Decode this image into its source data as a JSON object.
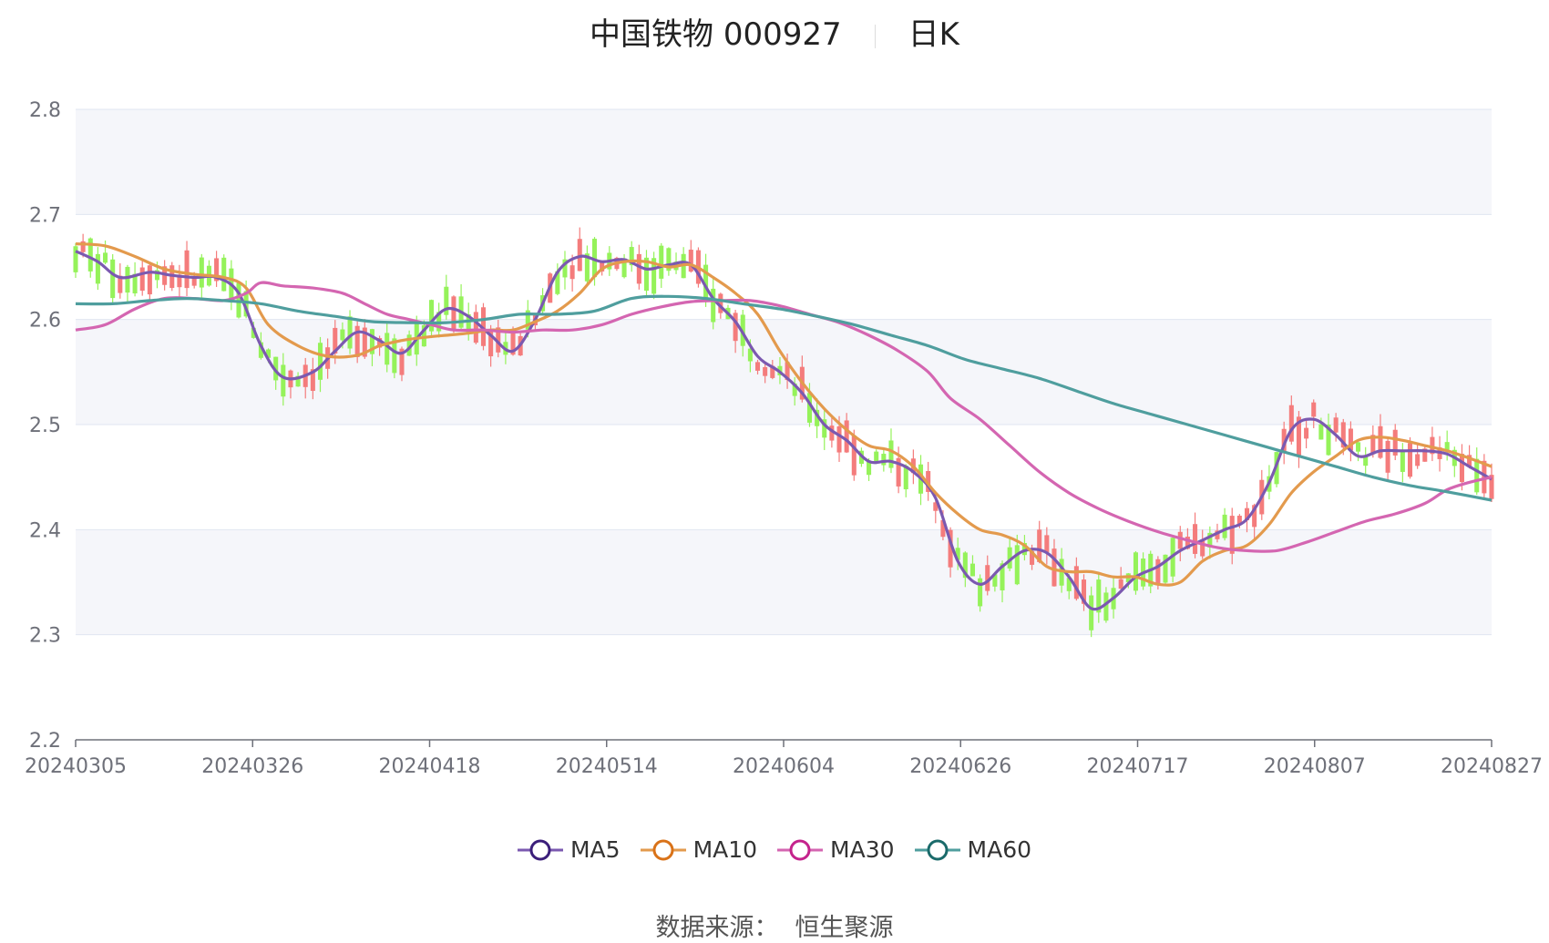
{
  "title": {
    "name": "中国铁物 000927",
    "period": "日K"
  },
  "source": {
    "label": "数据来源：",
    "value": "恒生聚源"
  },
  "chart_data": {
    "type": "candlestick",
    "yaxis": {
      "min": 2.2,
      "max": 2.8,
      "ticks": [
        "2.8",
        "2.7",
        "2.6",
        "2.5",
        "2.4",
        "2.3",
        "2.2"
      ]
    },
    "xaxis": {
      "tick_labels": [
        "20240305",
        "20240326",
        "20240418",
        "20240514",
        "20240604",
        "20240626",
        "20240717",
        "20240807",
        "20240827"
      ]
    },
    "colors": {
      "up": "#f47c7c",
      "down": "#95f25a",
      "grid": "#e0e6f1",
      "band": "#f5f6fa"
    },
    "series": [
      {
        "name": "MA5",
        "color": "#7b59b0",
        "marker": "#3b1e7a",
        "values": [
          [
            0,
            2.665
          ],
          [
            3,
            2.655
          ],
          [
            6,
            2.64
          ],
          [
            10,
            2.645
          ],
          [
            13,
            2.642
          ],
          [
            16,
            2.64
          ],
          [
            19,
            2.64
          ],
          [
            22,
            2.625
          ],
          [
            25,
            2.575
          ],
          [
            28,
            2.545
          ],
          [
            32,
            2.55
          ],
          [
            35,
            2.57
          ],
          [
            38,
            2.588
          ],
          [
            41,
            2.58
          ],
          [
            44,
            2.568
          ],
          [
            47,
            2.59
          ],
          [
            50,
            2.61
          ],
          [
            53,
            2.603
          ],
          [
            56,
            2.585
          ],
          [
            59,
            2.57
          ],
          [
            62,
            2.6
          ],
          [
            65,
            2.645
          ],
          [
            68,
            2.66
          ],
          [
            71,
            2.655
          ],
          [
            74,
            2.657
          ],
          [
            77,
            2.648
          ],
          [
            80,
            2.652
          ],
          [
            83,
            2.652
          ],
          [
            86,
            2.62
          ],
          [
            89,
            2.598
          ],
          [
            92,
            2.565
          ],
          [
            95,
            2.55
          ],
          [
            98,
            2.53
          ],
          [
            101,
            2.5
          ],
          [
            104,
            2.485
          ],
          [
            107,
            2.465
          ],
          [
            110,
            2.465
          ],
          [
            113,
            2.455
          ],
          [
            116,
            2.43
          ],
          [
            119,
            2.37
          ],
          [
            122,
            2.348
          ],
          [
            125,
            2.365
          ],
          [
            128,
            2.38
          ],
          [
            131,
            2.378
          ],
          [
            134,
            2.355
          ],
          [
            137,
            2.325
          ],
          [
            140,
            2.335
          ],
          [
            143,
            2.355
          ],
          [
            146,
            2.365
          ],
          [
            149,
            2.38
          ],
          [
            152,
            2.39
          ],
          [
            155,
            2.4
          ],
          [
            158,
            2.41
          ],
          [
            161,
            2.445
          ],
          [
            164,
            2.495
          ],
          [
            167,
            2.505
          ],
          [
            170,
            2.49
          ],
          [
            173,
            2.47
          ],
          [
            176,
            2.475
          ],
          [
            179,
            2.475
          ],
          [
            182,
            2.475
          ],
          [
            185,
            2.472
          ],
          [
            188,
            2.46
          ],
          [
            191,
            2.448
          ]
        ]
      },
      {
        "name": "MA10",
        "color": "#e39a4d",
        "marker": "#d97218",
        "values": [
          [
            0,
            2.672
          ],
          [
            4,
            2.67
          ],
          [
            8,
            2.66
          ],
          [
            12,
            2.648
          ],
          [
            16,
            2.643
          ],
          [
            20,
            2.64
          ],
          [
            23,
            2.63
          ],
          [
            26,
            2.595
          ],
          [
            30,
            2.575
          ],
          [
            34,
            2.565
          ],
          [
            38,
            2.566
          ],
          [
            41,
            2.575
          ],
          [
            44,
            2.58
          ],
          [
            47,
            2.583
          ],
          [
            50,
            2.585
          ],
          [
            53,
            2.587
          ],
          [
            56,
            2.59
          ],
          [
            59,
            2.59
          ],
          [
            62,
            2.598
          ],
          [
            65,
            2.608
          ],
          [
            68,
            2.625
          ],
          [
            71,
            2.648
          ],
          [
            74,
            2.655
          ],
          [
            77,
            2.655
          ],
          [
            80,
            2.65
          ],
          [
            83,
            2.652
          ],
          [
            86,
            2.64
          ],
          [
            89,
            2.625
          ],
          [
            92,
            2.605
          ],
          [
            95,
            2.57
          ],
          [
            98,
            2.54
          ],
          [
            101,
            2.515
          ],
          [
            104,
            2.495
          ],
          [
            107,
            2.48
          ],
          [
            110,
            2.475
          ],
          [
            113,
            2.46
          ],
          [
            116,
            2.435
          ],
          [
            119,
            2.415
          ],
          [
            122,
            2.4
          ],
          [
            125,
            2.395
          ],
          [
            128,
            2.385
          ],
          [
            131,
            2.365
          ],
          [
            134,
            2.36
          ],
          [
            137,
            2.36
          ],
          [
            140,
            2.355
          ],
          [
            143,
            2.355
          ],
          [
            146,
            2.348
          ],
          [
            149,
            2.35
          ],
          [
            152,
            2.37
          ],
          [
            155,
            2.38
          ],
          [
            158,
            2.385
          ],
          [
            161,
            2.405
          ],
          [
            164,
            2.435
          ],
          [
            167,
            2.455
          ],
          [
            170,
            2.47
          ],
          [
            173,
            2.485
          ],
          [
            176,
            2.488
          ],
          [
            179,
            2.485
          ],
          [
            182,
            2.48
          ],
          [
            185,
            2.475
          ],
          [
            188,
            2.468
          ],
          [
            191,
            2.46
          ]
        ]
      },
      {
        "name": "MA30",
        "color": "#d466b1",
        "marker": "#c4238c",
        "values": [
          [
            0,
            2.59
          ],
          [
            4,
            2.595
          ],
          [
            8,
            2.61
          ],
          [
            12,
            2.62
          ],
          [
            16,
            2.62
          ],
          [
            20,
            2.618
          ],
          [
            23,
            2.625
          ],
          [
            25,
            2.635
          ],
          [
            28,
            2.632
          ],
          [
            32,
            2.63
          ],
          [
            36,
            2.625
          ],
          [
            39,
            2.615
          ],
          [
            42,
            2.605
          ],
          [
            45,
            2.6
          ],
          [
            48,
            2.595
          ],
          [
            51,
            2.59
          ],
          [
            55,
            2.59
          ],
          [
            59,
            2.588
          ],
          [
            63,
            2.59
          ],
          [
            67,
            2.59
          ],
          [
            71,
            2.595
          ],
          [
            75,
            2.605
          ],
          [
            79,
            2.612
          ],
          [
            83,
            2.617
          ],
          [
            87,
            2.618
          ],
          [
            91,
            2.618
          ],
          [
            95,
            2.613
          ],
          [
            99,
            2.605
          ],
          [
            103,
            2.597
          ],
          [
            107,
            2.585
          ],
          [
            111,
            2.57
          ],
          [
            115,
            2.55
          ],
          [
            118,
            2.525
          ],
          [
            122,
            2.505
          ],
          [
            126,
            2.48
          ],
          [
            130,
            2.455
          ],
          [
            134,
            2.435
          ],
          [
            138,
            2.42
          ],
          [
            142,
            2.408
          ],
          [
            146,
            2.398
          ],
          [
            150,
            2.39
          ],
          [
            154,
            2.383
          ],
          [
            158,
            2.38
          ],
          [
            162,
            2.38
          ],
          [
            166,
            2.388
          ],
          [
            170,
            2.398
          ],
          [
            174,
            2.408
          ],
          [
            178,
            2.415
          ],
          [
            182,
            2.425
          ],
          [
            185,
            2.438
          ],
          [
            188,
            2.445
          ],
          [
            191,
            2.45
          ]
        ]
      },
      {
        "name": "MA60",
        "color": "#4f9e9e",
        "marker": "#1a6a6a",
        "values": [
          [
            0,
            2.615
          ],
          [
            5,
            2.615
          ],
          [
            10,
            2.618
          ],
          [
            15,
            2.62
          ],
          [
            20,
            2.618
          ],
          [
            25,
            2.615
          ],
          [
            30,
            2.608
          ],
          [
            35,
            2.603
          ],
          [
            40,
            2.598
          ],
          [
            45,
            2.597
          ],
          [
            50,
            2.597
          ],
          [
            55,
            2.6
          ],
          [
            60,
            2.605
          ],
          [
            65,
            2.605
          ],
          [
            70,
            2.608
          ],
          [
            75,
            2.62
          ],
          [
            80,
            2.622
          ],
          [
            85,
            2.62
          ],
          [
            90,
            2.615
          ],
          [
            95,
            2.61
          ],
          [
            100,
            2.603
          ],
          [
            105,
            2.595
          ],
          [
            110,
            2.585
          ],
          [
            115,
            2.575
          ],
          [
            120,
            2.562
          ],
          [
            125,
            2.553
          ],
          [
            130,
            2.544
          ],
          [
            135,
            2.532
          ],
          [
            140,
            2.52
          ],
          [
            145,
            2.51
          ],
          [
            150,
            2.5
          ],
          [
            155,
            2.49
          ],
          [
            160,
            2.48
          ],
          [
            165,
            2.47
          ],
          [
            170,
            2.46
          ],
          [
            175,
            2.45
          ],
          [
            180,
            2.442
          ],
          [
            185,
            2.436
          ],
          [
            191,
            2.428
          ]
        ]
      }
    ]
  }
}
